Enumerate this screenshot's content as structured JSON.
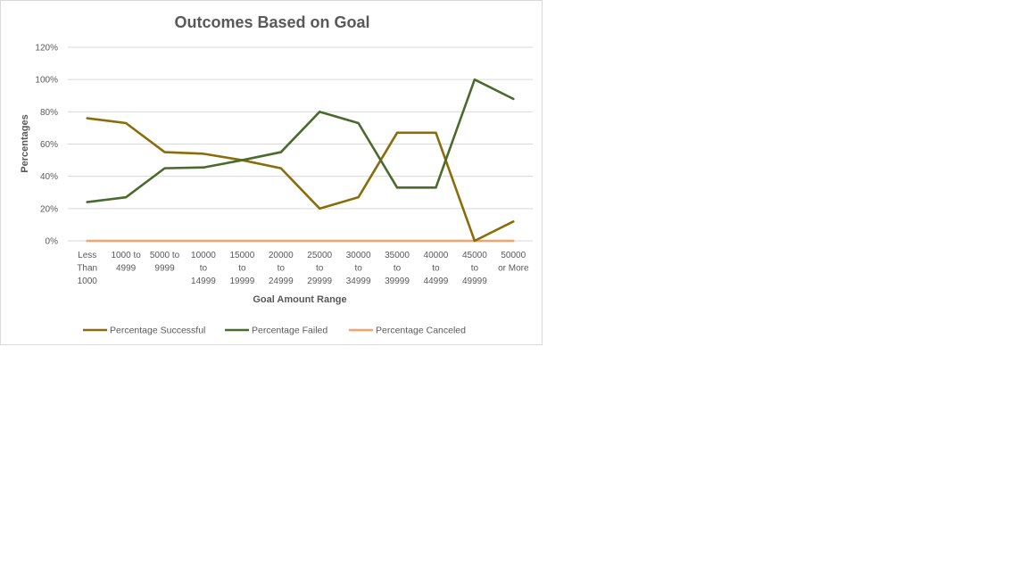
{
  "chart_data": {
    "type": "line",
    "title": "Outcomes Based on Goal",
    "xlabel": "Goal Amount Range",
    "ylabel": "Percentages",
    "ylim": [
      0,
      1.2
    ],
    "ytick_labels": [
      "0%",
      "20%",
      "40%",
      "60%",
      "80%",
      "100%",
      "120%"
    ],
    "categories": [
      "Less Than 1000",
      "1000 to 4999",
      "5000 to 9999",
      "10000 to 14999",
      "15000 to 19999",
      "20000 to 24999",
      "25000 to 29999",
      "30000 to 34999",
      "35000 to 39999",
      "40000 to 44999",
      "45000 to 49999",
      "50000 or More"
    ],
    "category_lines": [
      [
        "Less",
        "Than",
        "1000"
      ],
      [
        "1000 to",
        "4999"
      ],
      [
        "5000 to",
        "9999"
      ],
      [
        "10000",
        "to",
        "14999"
      ],
      [
        "15000",
        "to",
        "19999"
      ],
      [
        "20000",
        "to",
        "24999"
      ],
      [
        "25000",
        "to",
        "29999"
      ],
      [
        "30000",
        "to",
        "34999"
      ],
      [
        "35000",
        "to",
        "39999"
      ],
      [
        "40000",
        "to",
        "44999"
      ],
      [
        "45000",
        "to",
        "49999"
      ],
      [
        "50000",
        "or More"
      ]
    ],
    "series": [
      {
        "name": "Percentage Successful",
        "color": "#8a6d0b",
        "values": [
          0.76,
          0.73,
          0.55,
          0.54,
          0.5,
          0.45,
          0.2,
          0.27,
          0.67,
          0.67,
          0.0,
          0.12
        ]
      },
      {
        "name": "Percentage Failed",
        "color": "#4a6a2e",
        "values": [
          0.24,
          0.27,
          0.45,
          0.455,
          0.5,
          0.55,
          0.8,
          0.73,
          0.33,
          0.33,
          1.0,
          0.88
        ]
      },
      {
        "name": "Percentage Canceled",
        "color": "#f4a46a",
        "values": [
          0,
          0,
          0,
          0,
          0,
          0,
          0,
          0,
          0,
          0,
          0,
          0
        ]
      }
    ],
    "grid": true,
    "legend_position": "bottom"
  }
}
